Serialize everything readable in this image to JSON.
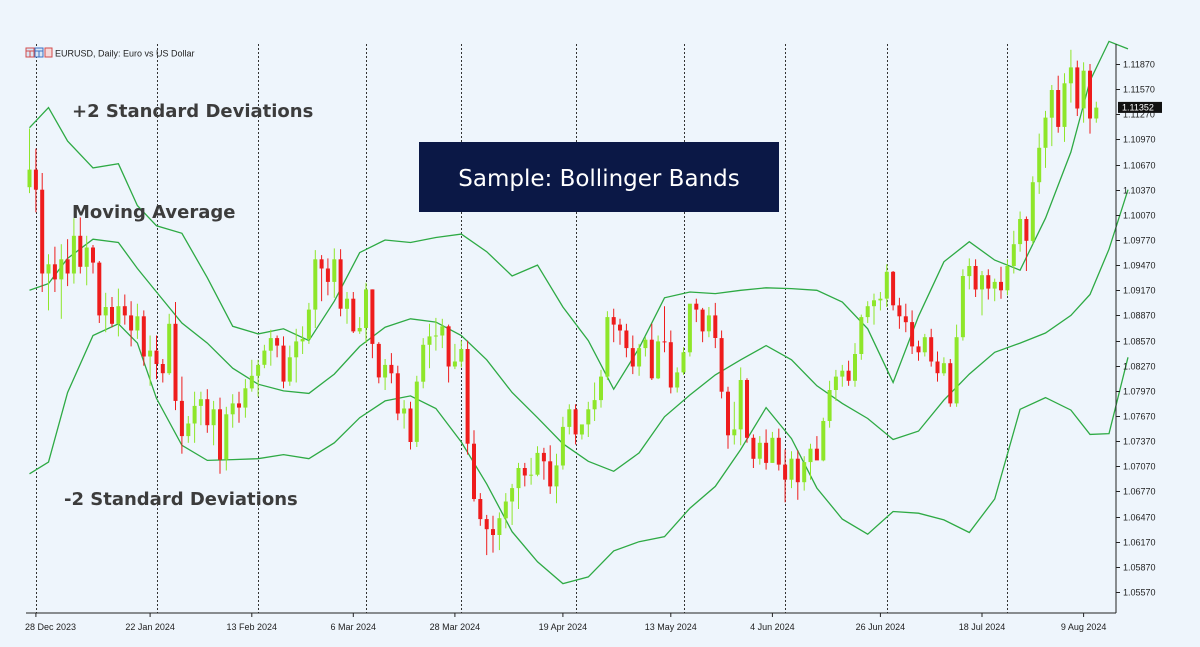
{
  "header": {
    "label": "EURUSD, Daily:  Euro vs US Dollar"
  },
  "annotations": {
    "upper": "+2 Standard Deviations",
    "middle": "Moving Average",
    "lower": "-2 Standard Deviations"
  },
  "title": "Sample: Bollinger Bands",
  "colors": {
    "bull": "#8ee62a",
    "bear": "#ee1c1c",
    "band": "#2eaa44",
    "background": "#eef5fc",
    "title_box": "#0b1846",
    "axis": "#222222"
  },
  "chart_data": {
    "type": "candlestick",
    "symbol": "EURUSD",
    "timeframe": "Daily",
    "ylim": [
      1.054,
      1.1205
    ],
    "yticks": [
      1.0557,
      1.0587,
      1.0617,
      1.0647,
      1.0677,
      1.0707,
      1.0737,
      1.0767,
      1.0797,
      1.0827,
      1.0857,
      1.0887,
      1.0917,
      1.0947,
      1.0977,
      1.1007,
      1.1037,
      1.1067,
      1.1097,
      1.1127,
      1.1157,
      1.1187
    ],
    "ytick_labels": [
      "1.05570",
      "1.05870",
      "1.06170",
      "1.06470",
      "1.06770",
      "1.07070",
      "1.07370",
      "1.07670",
      "1.07970",
      "1.08270",
      "1.08570",
      "1.08870",
      "1.09170",
      "1.09470",
      "1.09770",
      "1.10070",
      "1.10370",
      "1.10670",
      "1.10970",
      "1.11270",
      "1.11570",
      "1.11870"
    ],
    "current_price": 1.11352,
    "current_price_label": "1.11352",
    "xtick_labels": [
      "28 Dec 2023",
      "22 Jan 2024",
      "13 Feb 2024",
      "6 Mar 2024",
      "28 Mar 2024",
      "19 Apr 2024",
      "13 May 2024",
      "4 Jun 2024",
      "26 Jun 2024",
      "18 Jul 2024",
      "9 Aug 2024"
    ],
    "xtick_bar_index": [
      1,
      19,
      35,
      51,
      67,
      84,
      101,
      117,
      134,
      150,
      166
    ],
    "separator_bar_index": [
      1,
      20,
      36,
      53,
      68,
      86,
      103,
      119,
      135,
      154
    ],
    "bars": [
      [
        1.104,
        1.111,
        1.1033,
        1.1061
      ],
      [
        1.1061,
        1.1086,
        1.101,
        1.1037
      ],
      [
        1.1037,
        1.1057,
        1.0915,
        1.0937
      ],
      [
        1.0937,
        1.096,
        1.0893,
        1.0948
      ],
      [
        1.0948,
        1.0969,
        1.0915,
        1.093
      ],
      [
        1.093,
        1.0972,
        1.0883,
        1.0954
      ],
      [
        1.0954,
        1.0978,
        1.0922,
        1.0937
      ],
      [
        1.0937,
        1.1003,
        1.0925,
        1.0982
      ],
      [
        1.0982,
        1.1004,
        1.0937,
        1.0945
      ],
      [
        1.0945,
        1.0982,
        1.0923,
        1.0968
      ],
      [
        1.0968,
        1.0971,
        1.0937,
        1.095
      ],
      [
        1.095,
        1.0952,
        1.0878,
        1.0887
      ],
      [
        1.0887,
        1.0914,
        1.0867,
        1.0897
      ],
      [
        1.0897,
        1.0909,
        1.0873,
        1.0877
      ],
      [
        1.0877,
        1.0919,
        1.0862,
        1.0898
      ],
      [
        1.0898,
        1.0912,
        1.0876,
        1.0887
      ],
      [
        1.0887,
        1.0904,
        1.085,
        1.0869
      ],
      [
        1.0869,
        1.0901,
        1.0859,
        1.0886
      ],
      [
        1.0886,
        1.0893,
        1.0827,
        1.0838
      ],
      [
        1.0838,
        1.0863,
        1.0803,
        1.0845
      ],
      [
        1.0845,
        1.0863,
        1.0811,
        1.0829
      ],
      [
        1.0829,
        1.0835,
        1.0807,
        1.0818
      ],
      [
        1.0818,
        1.0889,
        1.0816,
        1.0877
      ],
      [
        1.0877,
        1.0903,
        1.0774,
        1.0785
      ],
      [
        1.0785,
        1.0814,
        1.0722,
        1.0743
      ],
      [
        1.0743,
        1.0767,
        1.0735,
        1.0758
      ],
      [
        1.0758,
        1.0796,
        1.0735,
        1.0779
      ],
      [
        1.0779,
        1.0796,
        1.0756,
        1.0787
      ],
      [
        1.0787,
        1.0799,
        1.0747,
        1.0756
      ],
      [
        1.0756,
        1.0785,
        1.0732,
        1.0775
      ],
      [
        1.0775,
        1.0789,
        1.0698,
        1.0715
      ],
      [
        1.0715,
        1.0778,
        1.0702,
        1.0769
      ],
      [
        1.0769,
        1.0793,
        1.0753,
        1.0782
      ],
      [
        1.0782,
        1.0796,
        1.0759,
        1.0777
      ],
      [
        1.0777,
        1.0811,
        1.0765,
        1.08
      ],
      [
        1.08,
        1.0834,
        1.0796,
        1.0815
      ],
      [
        1.0815,
        1.0834,
        1.079,
        1.0828
      ],
      [
        1.0828,
        1.0852,
        1.0824,
        1.0845
      ],
      [
        1.0845,
        1.087,
        1.0827,
        1.086
      ],
      [
        1.086,
        1.0863,
        1.0837,
        1.0851
      ],
      [
        1.0851,
        1.0862,
        1.08,
        1.0808
      ],
      [
        1.0808,
        1.0851,
        1.0803,
        1.0837
      ],
      [
        1.0837,
        1.0871,
        1.0807,
        1.0856
      ],
      [
        1.0856,
        1.0874,
        1.0841,
        1.0859
      ],
      [
        1.0859,
        1.0902,
        1.0853,
        1.0894
      ],
      [
        1.0894,
        1.0965,
        1.0872,
        1.0954
      ],
      [
        1.0954,
        1.0959,
        1.0904,
        1.0943
      ],
      [
        1.0943,
        1.0955,
        1.0911,
        1.0927
      ],
      [
        1.0927,
        1.0967,
        1.0908,
        1.0954
      ],
      [
        1.0954,
        1.0966,
        1.0886,
        1.0895
      ],
      [
        1.0895,
        1.0915,
        1.0877,
        1.0907
      ],
      [
        1.0907,
        1.0915,
        1.0866,
        1.0868
      ],
      [
        1.0868,
        1.0885,
        1.0865,
        1.0872
      ],
      [
        1.0872,
        1.0926,
        1.0854,
        1.0918
      ],
      [
        1.0918,
        1.0918,
        1.0836,
        1.0853
      ],
      [
        1.0853,
        1.0855,
        1.0806,
        1.0813
      ],
      [
        1.0813,
        1.0835,
        1.0798,
        1.0828
      ],
      [
        1.0828,
        1.0842,
        1.0806,
        1.0818
      ],
      [
        1.0818,
        1.0827,
        1.0762,
        1.077
      ],
      [
        1.077,
        1.0786,
        1.0752,
        1.0776
      ],
      [
        1.0776,
        1.0784,
        1.0727,
        1.0736
      ],
      [
        1.0736,
        1.0815,
        1.073,
        1.0808
      ],
      [
        1.0808,
        1.086,
        1.08,
        1.0852
      ],
      [
        1.0852,
        1.0877,
        1.0824,
        1.0862
      ],
      [
        1.0862,
        1.0884,
        1.0845,
        1.0863
      ],
      [
        1.0863,
        1.0883,
        1.0848,
        1.0874
      ],
      [
        1.0874,
        1.0876,
        1.0807,
        1.0826
      ],
      [
        1.0826,
        1.0853,
        1.0823,
        1.0832
      ],
      [
        1.0832,
        1.0857,
        1.0825,
        1.0847
      ],
      [
        1.0847,
        1.0857,
        1.0721,
        1.0734
      ],
      [
        1.0734,
        1.075,
        1.0665,
        1.0668
      ],
      [
        1.0668,
        1.0675,
        1.0636,
        1.0644
      ],
      [
        1.0644,
        1.0649,
        1.0601,
        1.0632
      ],
      [
        1.0632,
        1.0648,
        1.0604,
        1.0625
      ],
      [
        1.0625,
        1.0652,
        1.0607,
        1.0645
      ],
      [
        1.0645,
        1.0675,
        1.0633,
        1.0665
      ],
      [
        1.0665,
        1.0686,
        1.0637,
        1.0681
      ],
      [
        1.0681,
        1.0711,
        1.0656,
        1.0705
      ],
      [
        1.0705,
        1.0711,
        1.0683,
        1.0696
      ],
      [
        1.0696,
        1.0717,
        1.0685,
        1.0697
      ],
      [
        1.0697,
        1.0731,
        1.0695,
        1.0723
      ],
      [
        1.0723,
        1.0729,
        1.0691,
        1.0713
      ],
      [
        1.0713,
        1.0732,
        1.0674,
        1.0683
      ],
      [
        1.0683,
        1.0722,
        1.0663,
        1.0708
      ],
      [
        1.0708,
        1.0766,
        1.0703,
        1.0754
      ],
      [
        1.0754,
        1.0781,
        1.0745,
        1.0775
      ],
      [
        1.0775,
        1.0781,
        1.0733,
        1.0745
      ],
      [
        1.0745,
        1.0756,
        1.0739,
        1.0757
      ],
      [
        1.0757,
        1.0784,
        1.0742,
        1.0775
      ],
      [
        1.0775,
        1.0807,
        1.0761,
        1.0786
      ],
      [
        1.0786,
        1.0822,
        1.0777,
        1.0814
      ],
      [
        1.0814,
        1.0892,
        1.081,
        1.0885
      ],
      [
        1.0885,
        1.0895,
        1.0855,
        1.0876
      ],
      [
        1.0876,
        1.0883,
        1.0852,
        1.0869
      ],
      [
        1.0869,
        1.0877,
        1.0837,
        1.0848
      ],
      [
        1.0848,
        1.0863,
        1.0817,
        1.0826
      ],
      [
        1.0826,
        1.0853,
        1.0815,
        1.0848
      ],
      [
        1.0848,
        1.0861,
        1.0838,
        1.0858
      ],
      [
        1.0858,
        1.0877,
        1.081,
        1.0812
      ],
      [
        1.0812,
        1.0863,
        1.0811,
        1.0856
      ],
      [
        1.0856,
        1.0898,
        1.0843,
        1.0855
      ],
      [
        1.0855,
        1.0869,
        1.0794,
        1.0801
      ],
      [
        1.0801,
        1.0825,
        1.0795,
        1.0819
      ],
      [
        1.0819,
        1.0849,
        1.0816,
        1.0843
      ],
      [
        1.0843,
        1.09,
        1.0838,
        1.0901
      ],
      [
        1.0901,
        1.0907,
        1.0879,
        1.0894
      ],
      [
        1.0894,
        1.0896,
        1.0855,
        1.0868
      ],
      [
        1.0868,
        1.0897,
        1.0861,
        1.0887
      ],
      [
        1.0887,
        1.0902,
        1.0848,
        1.086
      ],
      [
        1.086,
        1.0869,
        1.0788,
        1.0796
      ],
      [
        1.0796,
        1.0802,
        1.0728,
        1.0744
      ],
      [
        1.0744,
        1.0784,
        1.0733,
        1.0751
      ],
      [
        1.0751,
        1.0825,
        1.0732,
        1.081
      ],
      [
        1.081,
        1.0812,
        1.0735,
        1.0741
      ],
      [
        1.0741,
        1.0745,
        1.0705,
        1.0716
      ],
      [
        1.0716,
        1.0743,
        1.0709,
        1.0735
      ],
      [
        1.0735,
        1.0751,
        1.0703,
        1.0711
      ],
      [
        1.0711,
        1.0748,
        1.0711,
        1.0741
      ],
      [
        1.0741,
        1.0752,
        1.0702,
        1.0709
      ],
      [
        1.0709,
        1.0727,
        1.0664,
        1.0691
      ],
      [
        1.0691,
        1.0725,
        1.0681,
        1.0716
      ],
      [
        1.0716,
        1.0726,
        1.0667,
        1.0688
      ],
      [
        1.0688,
        1.0719,
        1.0678,
        1.0712
      ],
      [
        1.0712,
        1.0734,
        1.0691,
        1.0728
      ],
      [
        1.0728,
        1.0743,
        1.0715,
        1.0714
      ],
      [
        1.0714,
        1.0765,
        1.0713,
        1.0761
      ],
      [
        1.0761,
        1.0809,
        1.0753,
        1.0798
      ],
      [
        1.0798,
        1.0822,
        1.0785,
        1.0814
      ],
      [
        1.0814,
        1.0828,
        1.0802,
        1.0821
      ],
      [
        1.0821,
        1.0833,
        1.0803,
        1.0809
      ],
      [
        1.0809,
        1.0854,
        1.0802,
        1.0841
      ],
      [
        1.0841,
        1.0888,
        1.0834,
        1.0885
      ],
      [
        1.0885,
        1.0904,
        1.0878,
        1.0898
      ],
      [
        1.0898,
        1.0913,
        1.0876,
        1.0905
      ],
      [
        1.0905,
        1.0915,
        1.0893,
        1.0907
      ],
      [
        1.0907,
        1.0948,
        1.0897,
        1.0939
      ],
      [
        1.0939,
        1.094,
        1.0893,
        1.0899
      ],
      [
        1.0899,
        1.0908,
        1.0871,
        1.0886
      ],
      [
        1.0886,
        1.0901,
        1.0867,
        1.0879
      ],
      [
        1.0879,
        1.0893,
        1.0841,
        1.085
      ],
      [
        1.085,
        1.0857,
        1.0833,
        1.0843
      ],
      [
        1.0843,
        1.0865,
        1.0838,
        1.0861
      ],
      [
        1.0861,
        1.0871,
        1.0826,
        1.0832
      ],
      [
        1.0832,
        1.0844,
        1.0808,
        1.0818
      ],
      [
        1.0818,
        1.0837,
        1.0815,
        1.083
      ],
      [
        1.083,
        1.0835,
        1.0778,
        1.0782
      ],
      [
        1.0782,
        1.0876,
        1.0778,
        1.0861
      ],
      [
        1.0861,
        1.0942,
        1.0857,
        1.0934
      ],
      [
        1.0934,
        1.0955,
        1.0918,
        1.0946
      ],
      [
        1.0946,
        1.0954,
        1.0909,
        1.0918
      ],
      [
        1.0918,
        1.094,
        1.0887,
        1.0935
      ],
      [
        1.0935,
        1.0942,
        1.0906,
        1.0919
      ],
      [
        1.0919,
        1.0931,
        1.0904,
        1.0927
      ],
      [
        1.0927,
        1.0945,
        1.0907,
        1.0917
      ],
      [
        1.0917,
        1.0954,
        1.0911,
        1.0946
      ],
      [
        1.0946,
        1.0988,
        1.0937,
        1.0972
      ],
      [
        1.0972,
        1.1011,
        1.0963,
        1.1002
      ],
      [
        1.1002,
        1.1005,
        1.094,
        1.0976
      ],
      [
        1.0976,
        1.1053,
        1.0972,
        1.1046
      ],
      [
        1.1046,
        1.1104,
        1.1032,
        1.1087
      ],
      [
        1.1087,
        1.1131,
        1.1063,
        1.1123
      ],
      [
        1.1123,
        1.1162,
        1.1089,
        1.1156
      ],
      [
        1.1156,
        1.1173,
        1.1105,
        1.1112
      ],
      [
        1.1112,
        1.1176,
        1.1094,
        1.1164
      ],
      [
        1.1164,
        1.1204,
        1.1141,
        1.1183
      ],
      [
        1.1183,
        1.1191,
        1.1125,
        1.1134
      ],
      [
        1.1134,
        1.1189,
        1.1117,
        1.1179
      ],
      [
        1.1179,
        1.1187,
        1.1104,
        1.1122
      ],
      [
        1.1122,
        1.1142,
        1.1117,
        1.1135
      ]
    ],
    "bands": {
      "x": [
        0,
        3,
        6,
        10,
        14,
        17,
        20,
        24,
        28,
        32,
        36,
        40,
        44,
        48,
        52,
        56,
        60,
        64,
        68,
        72,
        76,
        80,
        84,
        88,
        92,
        96,
        100,
        104,
        108,
        112,
        116,
        120,
        124,
        128,
        132,
        136,
        140,
        144,
        148,
        152,
        156,
        160,
        164,
        167,
        170,
        173
      ],
      "upper": [
        1.1111,
        1.1135,
        1.1095,
        1.1063,
        1.1068,
        1.1018,
        1.0994,
        1.0985,
        1.0932,
        1.0874,
        1.0865,
        1.0871,
        1.0857,
        1.0904,
        1.0962,
        1.0977,
        1.0974,
        1.098,
        1.0984,
        1.0963,
        1.0934,
        1.0947,
        1.0897,
        1.0857,
        1.0799,
        1.0848,
        1.0908,
        1.0915,
        1.0913,
        1.0917,
        1.092,
        1.0919,
        1.0917,
        1.0903,
        1.0871,
        1.0807,
        1.0886,
        1.0951,
        1.0975,
        1.0953,
        1.0941,
        1.1003,
        1.1082,
        1.1167,
        1.1214,
        1.1205
      ],
      "middle": [
        1.0917,
        1.0925,
        1.0955,
        1.0978,
        1.0974,
        1.0943,
        1.0915,
        1.0878,
        1.0854,
        1.0824,
        1.0805,
        1.0797,
        1.0794,
        1.0817,
        1.085,
        1.0873,
        1.0883,
        1.0879,
        1.0863,
        1.0834,
        1.0795,
        1.0765,
        1.0734,
        1.0713,
        1.0701,
        1.0723,
        1.0766,
        1.0792,
        1.0816,
        1.0834,
        1.0851,
        1.0834,
        1.0803,
        1.0782,
        1.0764,
        1.0739,
        1.0749,
        1.0786,
        1.0817,
        1.0843,
        1.0854,
        1.0866,
        1.0887,
        1.0912,
        1.0966,
        1.1037
      ],
      "lower": [
        1.0698,
        1.0712,
        1.0795,
        1.0863,
        1.0877,
        1.0854,
        1.0788,
        1.0732,
        1.0714,
        1.0715,
        1.0716,
        1.0721,
        1.0716,
        1.0735,
        1.0765,
        1.0785,
        1.0791,
        1.0776,
        1.0736,
        1.0686,
        1.0629,
        1.0593,
        1.0567,
        1.0575,
        1.0606,
        1.0617,
        1.0623,
        1.0657,
        1.0683,
        1.0727,
        1.0777,
        1.074,
        1.0681,
        1.0644,
        1.0626,
        1.0653,
        1.0651,
        1.0643,
        1.0628,
        1.0668,
        1.0775,
        1.0789,
        1.0774,
        1.0745,
        1.0746,
        1.0837
      ]
    }
  }
}
